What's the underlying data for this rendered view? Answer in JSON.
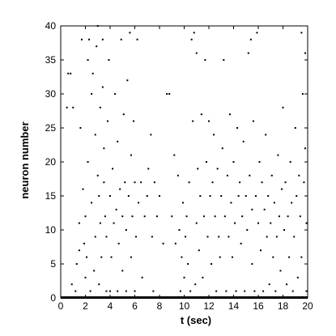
{
  "chart_data": {
    "type": "scatter",
    "title": "",
    "xlabel": "t (sec)",
    "ylabel": "neuron number",
    "xlim": [
      0,
      20
    ],
    "ylim": [
      0,
      40
    ],
    "xticks": [
      0,
      2,
      4,
      6,
      8,
      10,
      12,
      14,
      16,
      18,
      20
    ],
    "yticks": [
      0,
      5,
      10,
      15,
      20,
      25,
      30,
      35,
      40
    ],
    "grid": false,
    "marker_color": "#000000",
    "series": [
      {
        "points": [
          [
            0.6,
            33
          ],
          [
            0.8,
            33
          ],
          [
            0.5,
            28
          ],
          [
            1.0,
            28
          ],
          [
            0.9,
            2
          ],
          [
            1.2,
            1
          ],
          [
            1.3,
            5
          ],
          [
            1.5,
            7
          ],
          [
            1.5,
            11
          ],
          [
            1.6,
            25
          ],
          [
            1.7,
            38
          ],
          [
            1.8,
            16
          ],
          [
            1.9,
            8
          ],
          [
            2.0,
            12
          ],
          [
            2.0,
            3
          ],
          [
            2.1,
            6
          ],
          [
            2.2,
            20
          ],
          [
            2.2,
            35
          ],
          [
            2.3,
            38
          ],
          [
            2.4,
            1
          ],
          [
            2.5,
            14
          ],
          [
            2.5,
            30
          ],
          [
            2.6,
            33
          ],
          [
            2.7,
            4
          ],
          [
            2.8,
            9
          ],
          [
            2.8,
            24
          ],
          [
            2.9,
            37
          ],
          [
            3.0,
            18
          ],
          [
            3.0,
            40
          ],
          [
            3.1,
            2
          ],
          [
            3.1,
            15
          ],
          [
            3.2,
            11
          ],
          [
            3.2,
            28
          ],
          [
            3.3,
            6
          ],
          [
            3.4,
            31
          ],
          [
            3.4,
            38
          ],
          [
            3.5,
            17
          ],
          [
            3.5,
            22
          ],
          [
            3.6,
            12
          ],
          [
            3.7,
            1
          ],
          [
            3.7,
            9
          ],
          [
            3.8,
            26
          ],
          [
            3.9,
            35
          ],
          [
            4.0,
            15
          ],
          [
            4.0,
            1
          ],
          [
            4.1,
            6
          ],
          [
            4.2,
            19
          ],
          [
            4.3,
            11
          ],
          [
            4.4,
            30
          ],
          [
            4.5,
            13
          ],
          [
            4.6,
            1
          ],
          [
            4.6,
            23
          ],
          [
            4.7,
            8
          ],
          [
            4.8,
            16
          ],
          [
            4.9,
            38
          ],
          [
            5.0,
            12
          ],
          [
            5.0,
            4
          ],
          [
            5.1,
            27
          ],
          [
            5.2,
            17
          ],
          [
            5.3,
            1
          ],
          [
            5.3,
            10
          ],
          [
            5.4,
            32
          ],
          [
            5.5,
            15
          ],
          [
            5.6,
            39
          ],
          [
            5.7,
            6
          ],
          [
            5.7,
            21
          ],
          [
            5.8,
            12
          ],
          [
            5.9,
            26
          ],
          [
            6.0,
            1
          ],
          [
            6.0,
            17
          ],
          [
            6.1,
            9
          ],
          [
            6.2,
            38
          ],
          [
            6.3,
            14
          ],
          [
            6.5,
            17
          ],
          [
            6.6,
            3
          ],
          [
            6.8,
            12
          ],
          [
            7.0,
            15
          ],
          [
            7.1,
            19
          ],
          [
            7.3,
            24
          ],
          [
            7.4,
            9
          ],
          [
            7.5,
            1
          ],
          [
            7.6,
            17
          ],
          [
            7.8,
            12
          ],
          [
            8.0,
            15
          ],
          [
            8.3,
            8
          ],
          [
            8.6,
            30
          ],
          [
            8.8,
            30
          ],
          [
            9.0,
            12
          ],
          [
            9.2,
            21
          ],
          [
            9.3,
            8
          ],
          [
            9.5,
            18
          ],
          [
            9.6,
            10
          ],
          [
            9.7,
            1
          ],
          [
            9.8,
            6
          ],
          [
            9.9,
            14
          ],
          [
            10.0,
            3
          ],
          [
            10.1,
            9
          ],
          [
            10.2,
            12
          ],
          [
            10.3,
            5
          ],
          [
            10.4,
            17
          ],
          [
            10.5,
            1
          ],
          [
            10.6,
            38
          ],
          [
            10.7,
            26
          ],
          [
            10.8,
            39
          ],
          [
            10.9,
            2
          ],
          [
            11.0,
            36
          ],
          [
            11.0,
            11
          ],
          [
            11.1,
            19
          ],
          [
            11.2,
            7
          ],
          [
            11.3,
            15
          ],
          [
            11.4,
            27
          ],
          [
            11.5,
            3
          ],
          [
            11.6,
            12
          ],
          [
            11.7,
            35
          ],
          [
            11.8,
            20
          ],
          [
            11.9,
            9
          ],
          [
            12.0,
            26
          ],
          [
            12.1,
            15
          ],
          [
            12.2,
            5
          ],
          [
            12.3,
            17
          ],
          [
            12.4,
            24
          ],
          [
            12.5,
            12
          ],
          [
            12.6,
            1
          ],
          [
            12.7,
            19
          ],
          [
            12.8,
            9
          ],
          [
            12.9,
            6
          ],
          [
            13.0,
            15
          ],
          [
            13.1,
            22
          ],
          [
            13.2,
            35
          ],
          [
            13.3,
            12
          ],
          [
            13.4,
            1
          ],
          [
            13.5,
            18
          ],
          [
            13.6,
            9
          ],
          [
            13.7,
            27
          ],
          [
            13.8,
            14
          ],
          [
            13.9,
            6
          ],
          [
            14.0,
            20
          ],
          [
            14.1,
            11
          ],
          [
            14.2,
            1
          ],
          [
            14.3,
            25
          ],
          [
            14.4,
            15
          ],
          [
            14.5,
            17
          ],
          [
            14.6,
            8
          ],
          [
            14.7,
            12
          ],
          [
            14.8,
            23
          ],
          [
            14.9,
            1
          ],
          [
            15.0,
            15
          ],
          [
            15.1,
            10
          ],
          [
            15.2,
            36
          ],
          [
            15.3,
            18
          ],
          [
            15.4,
            38
          ],
          [
            15.5,
            5
          ],
          [
            15.5,
            13
          ],
          [
            15.6,
            26
          ],
          [
            15.7,
            1
          ],
          [
            15.8,
            15
          ],
          [
            15.9,
            39
          ],
          [
            16.0,
            11
          ],
          [
            16.1,
            20
          ],
          [
            16.2,
            7
          ],
          [
            16.3,
            17
          ],
          [
            16.4,
            1
          ],
          [
            16.5,
            13
          ],
          [
            16.6,
            24
          ],
          [
            16.7,
            9
          ],
          [
            16.8,
            15
          ],
          [
            16.9,
            2
          ],
          [
            17.0,
            11
          ],
          [
            17.1,
            18
          ],
          [
            17.2,
            6
          ],
          [
            17.3,
            14
          ],
          [
            17.4,
            1
          ],
          [
            17.5,
            9
          ],
          [
            17.6,
            21
          ],
          [
            17.7,
            12
          ],
          [
            17.8,
            4
          ],
          [
            17.9,
            16
          ],
          [
            18.0,
            28
          ],
          [
            18.1,
            10
          ],
          [
            18.2,
            17
          ],
          [
            18.3,
            2
          ],
          [
            18.4,
            12
          ],
          [
            18.5,
            6
          ],
          [
            18.6,
            20
          ],
          [
            18.7,
            14
          ],
          [
            18.8,
            1
          ],
          [
            18.9,
            9
          ],
          [
            19.0,
            25
          ],
          [
            19.1,
            15
          ],
          [
            19.2,
            3
          ],
          [
            19.3,
            18
          ],
          [
            19.4,
            12
          ],
          [
            19.5,
            6
          ],
          [
            19.6,
            30
          ],
          [
            19.7,
            17
          ],
          [
            19.8,
            36
          ],
          [
            19.9,
            11
          ],
          [
            19.5,
            39
          ],
          [
            19.8,
            22
          ],
          [
            19.9,
            1
          ]
        ],
        "baseline_band": true
      }
    ]
  }
}
